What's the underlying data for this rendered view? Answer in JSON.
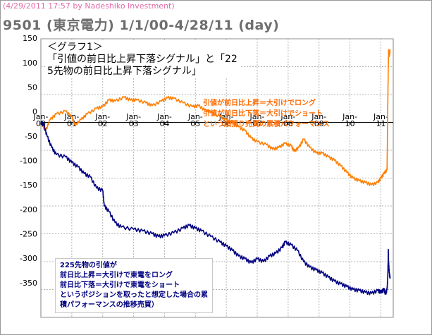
{
  "header": {
    "stamp": "(4/29/2011 17:57 by Nadeshiko Investment)",
    "title": "9501 (東京電力)  1/1/00-4/28/11 (day)"
  },
  "annotations": {
    "graph_title": [
      "＜グラフ1＞",
      "「引値の前日比上昇下落シグナル」と「22",
      "5先物の前日比上昇下落シグナル」"
    ],
    "orange_note": [
      "引値が前日比上昇＝大引けでロング",
      "引値が前日比下落＝大引けでショート",
      "という順張り売買の累積パフォーマンス"
    ],
    "blue_note": [
      "225先物の引値が",
      "前日比上昇＝大引けで東電をロング",
      "前日比下落＝大引けで東電をショート",
      "というポジションを取ったと想定した場合の累",
      "積パフォーマンスの推移売買）"
    ]
  },
  "chart_data": {
    "type": "line",
    "x_unit": "year (2000–2011)",
    "xlim": [
      2000.0,
      2011.4
    ],
    "ylim": [
      -350,
      150
    ],
    "yticks": [
      -350,
      -300,
      -250,
      -200,
      -150,
      -100,
      -50,
      0,
      50,
      100,
      150
    ],
    "xticks": [
      {
        "x": 2000,
        "label": [
          "Jan-",
          "00"
        ]
      },
      {
        "x": 2001,
        "label": [
          "Jan-",
          "01"
        ]
      },
      {
        "x": 2002,
        "label": [
          "Jan-",
          "02"
        ]
      },
      {
        "x": 2003,
        "label": [
          "Jan-",
          "03"
        ]
      },
      {
        "x": 2004,
        "label": [
          "Jan-",
          "04"
        ]
      },
      {
        "x": 2005,
        "label": [
          "Jan-",
          "05"
        ]
      },
      {
        "x": 2006,
        "label": [
          "Jan-",
          "06"
        ]
      },
      {
        "x": 2007,
        "label": [
          "Jan-",
          "07"
        ]
      },
      {
        "x": 2008,
        "label": [
          "Jan-",
          "08"
        ]
      },
      {
        "x": 2009,
        "label": [
          "Jan-",
          "09"
        ]
      },
      {
        "x": 2010,
        "label": [
          "Jan-",
          "10"
        ]
      },
      {
        "x": 2011,
        "label": [
          "Jan-",
          "11"
        ]
      }
    ],
    "grid": true,
    "colors": {
      "orange": "#ff7f00",
      "navy": "#000080",
      "grid": "#b4b4b4"
    },
    "series": [
      {
        "color": "#ff7f00",
        "points": [
          [
            2000.0,
            0
          ],
          [
            2000.15,
            -15
          ],
          [
            2000.3,
            5
          ],
          [
            2000.5,
            15
          ],
          [
            2000.8,
            20
          ],
          [
            2001.0,
            10
          ],
          [
            2001.1,
            -5
          ],
          [
            2001.3,
            5
          ],
          [
            2001.5,
            15
          ],
          [
            2001.8,
            25
          ],
          [
            2002.0,
            28
          ],
          [
            2002.2,
            40
          ],
          [
            2002.4,
            38
          ],
          [
            2002.7,
            45
          ],
          [
            2002.9,
            40
          ],
          [
            2003.1,
            40
          ],
          [
            2003.4,
            35
          ],
          [
            2003.6,
            30
          ],
          [
            2003.9,
            38
          ],
          [
            2004.1,
            44
          ],
          [
            2004.3,
            43
          ],
          [
            2004.6,
            35
          ],
          [
            2004.9,
            28
          ],
          [
            2005.1,
            30
          ],
          [
            2005.3,
            22
          ],
          [
            2005.5,
            18
          ],
          [
            2005.8,
            10
          ],
          [
            2006.0,
            5
          ],
          [
            2006.2,
            0
          ],
          [
            2006.4,
            -8
          ],
          [
            2006.6,
            -15
          ],
          [
            2006.8,
            -28
          ],
          [
            2007.0,
            -35
          ],
          [
            2007.3,
            -40
          ],
          [
            2007.5,
            -48
          ],
          [
            2007.7,
            -45
          ],
          [
            2007.9,
            -38
          ],
          [
            2008.1,
            -42
          ],
          [
            2008.2,
            -52
          ],
          [
            2008.35,
            -45
          ],
          [
            2008.5,
            -30
          ],
          [
            2008.7,
            -45
          ],
          [
            2008.9,
            -55
          ],
          [
            2009.1,
            -55
          ],
          [
            2009.3,
            -62
          ],
          [
            2009.5,
            -68
          ],
          [
            2009.7,
            -78
          ],
          [
            2009.9,
            -90
          ],
          [
            2010.1,
            -100
          ],
          [
            2010.3,
            -105
          ],
          [
            2010.5,
            -108
          ],
          [
            2010.7,
            -112
          ],
          [
            2010.9,
            -108
          ],
          [
            2011.0,
            -100
          ],
          [
            2011.1,
            -92
          ],
          [
            2011.2,
            -85
          ],
          [
            2011.21,
            -40
          ],
          [
            2011.22,
            20
          ],
          [
            2011.23,
            60
          ],
          [
            2011.24,
            100
          ],
          [
            2011.25,
            130
          ],
          [
            2011.27,
            118
          ],
          [
            2011.3,
            130
          ]
        ]
      },
      {
        "color": "#000080",
        "points": [
          [
            2000.0,
            0
          ],
          [
            2000.1,
            -5
          ],
          [
            2000.2,
            -25
          ],
          [
            2000.35,
            -45
          ],
          [
            2000.5,
            -58
          ],
          [
            2000.8,
            -62
          ],
          [
            2001.0,
            -72
          ],
          [
            2001.2,
            -80
          ],
          [
            2001.4,
            -92
          ],
          [
            2001.6,
            -98
          ],
          [
            2001.8,
            -118
          ],
          [
            2002.0,
            -122
          ],
          [
            2002.05,
            -150
          ],
          [
            2002.2,
            -160
          ],
          [
            2002.4,
            -180
          ],
          [
            2002.6,
            -188
          ],
          [
            2003.0,
            -192
          ],
          [
            2003.3,
            -195
          ],
          [
            2003.6,
            -200
          ],
          [
            2003.8,
            -205
          ],
          [
            2004.0,
            -203
          ],
          [
            2004.3,
            -198
          ],
          [
            2004.6,
            -190
          ],
          [
            2004.8,
            -185
          ],
          [
            2005.0,
            -190
          ],
          [
            2005.2,
            -195
          ],
          [
            2005.5,
            -205
          ],
          [
            2005.8,
            -215
          ],
          [
            2006.0,
            -222
          ],
          [
            2006.2,
            -230
          ],
          [
            2006.4,
            -240
          ],
          [
            2006.6,
            -245
          ],
          [
            2006.8,
            -252
          ],
          [
            2007.0,
            -245
          ],
          [
            2007.2,
            -250
          ],
          [
            2007.4,
            -240
          ],
          [
            2007.6,
            -235
          ],
          [
            2007.8,
            -225
          ],
          [
            2007.9,
            -215
          ],
          [
            2008.1,
            -220
          ],
          [
            2008.3,
            -230
          ],
          [
            2008.5,
            -250
          ],
          [
            2008.7,
            -260
          ],
          [
            2008.9,
            -265
          ],
          [
            2009.1,
            -270
          ],
          [
            2009.3,
            -278
          ],
          [
            2009.5,
            -285
          ],
          [
            2009.7,
            -290
          ],
          [
            2009.9,
            -295
          ],
          [
            2010.1,
            -300
          ],
          [
            2010.3,
            -302
          ],
          [
            2010.5,
            -305
          ],
          [
            2010.7,
            -307
          ],
          [
            2010.9,
            -302
          ],
          [
            2011.0,
            -305
          ],
          [
            2011.1,
            -300
          ],
          [
            2011.15,
            -308
          ],
          [
            2011.2,
            -300
          ],
          [
            2011.22,
            -280
          ],
          [
            2011.23,
            -262
          ],
          [
            2011.24,
            -228
          ],
          [
            2011.25,
            -250
          ],
          [
            2011.27,
            -270
          ],
          [
            2011.3,
            -280
          ]
        ]
      }
    ]
  }
}
